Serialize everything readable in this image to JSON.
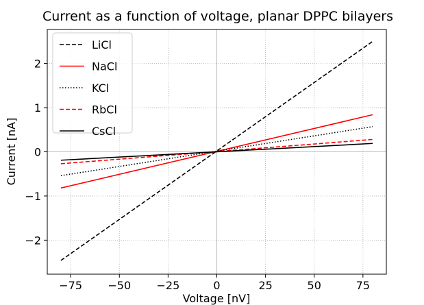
{
  "chart_data": {
    "type": "line",
    "title": "Current as a function of voltage, planar DPPC bilayers",
    "xlabel": "Voltage [nV]",
    "ylabel": "Current [nA]",
    "xlim": [
      -87,
      87
    ],
    "ylim": [
      -2.77,
      2.77
    ],
    "xticks": [
      -75,
      -50,
      -25,
      0,
      25,
      50,
      75
    ],
    "yticks": [
      -2,
      -1,
      0,
      1,
      2
    ],
    "xtick_labels": [
      "−75",
      "−50",
      "−25",
      "0",
      "25",
      "50",
      "75"
    ],
    "ytick_labels": [
      "−2",
      "−1",
      "0",
      "1",
      "2"
    ],
    "grid": true,
    "legend_position": "top-left",
    "x": [
      -80,
      80
    ],
    "series": [
      {
        "name": "LiCl",
        "values": [
          -2.46,
          2.5
        ],
        "color": "#000000",
        "linestyle": "dashed"
      },
      {
        "name": "NaCl",
        "values": [
          -0.82,
          0.84
        ],
        "color": "#ff0000",
        "linestyle": "solid"
      },
      {
        "name": "KCl",
        "values": [
          -0.54,
          0.57
        ],
        "color": "#000000",
        "linestyle": "dotted"
      },
      {
        "name": "RbCl",
        "values": [
          -0.27,
          0.28
        ],
        "color": "#ff0000",
        "linestyle": "dashed"
      },
      {
        "name": "CsCl",
        "values": [
          -0.19,
          0.19
        ],
        "color": "#000000",
        "linestyle": "solid"
      }
    ]
  }
}
